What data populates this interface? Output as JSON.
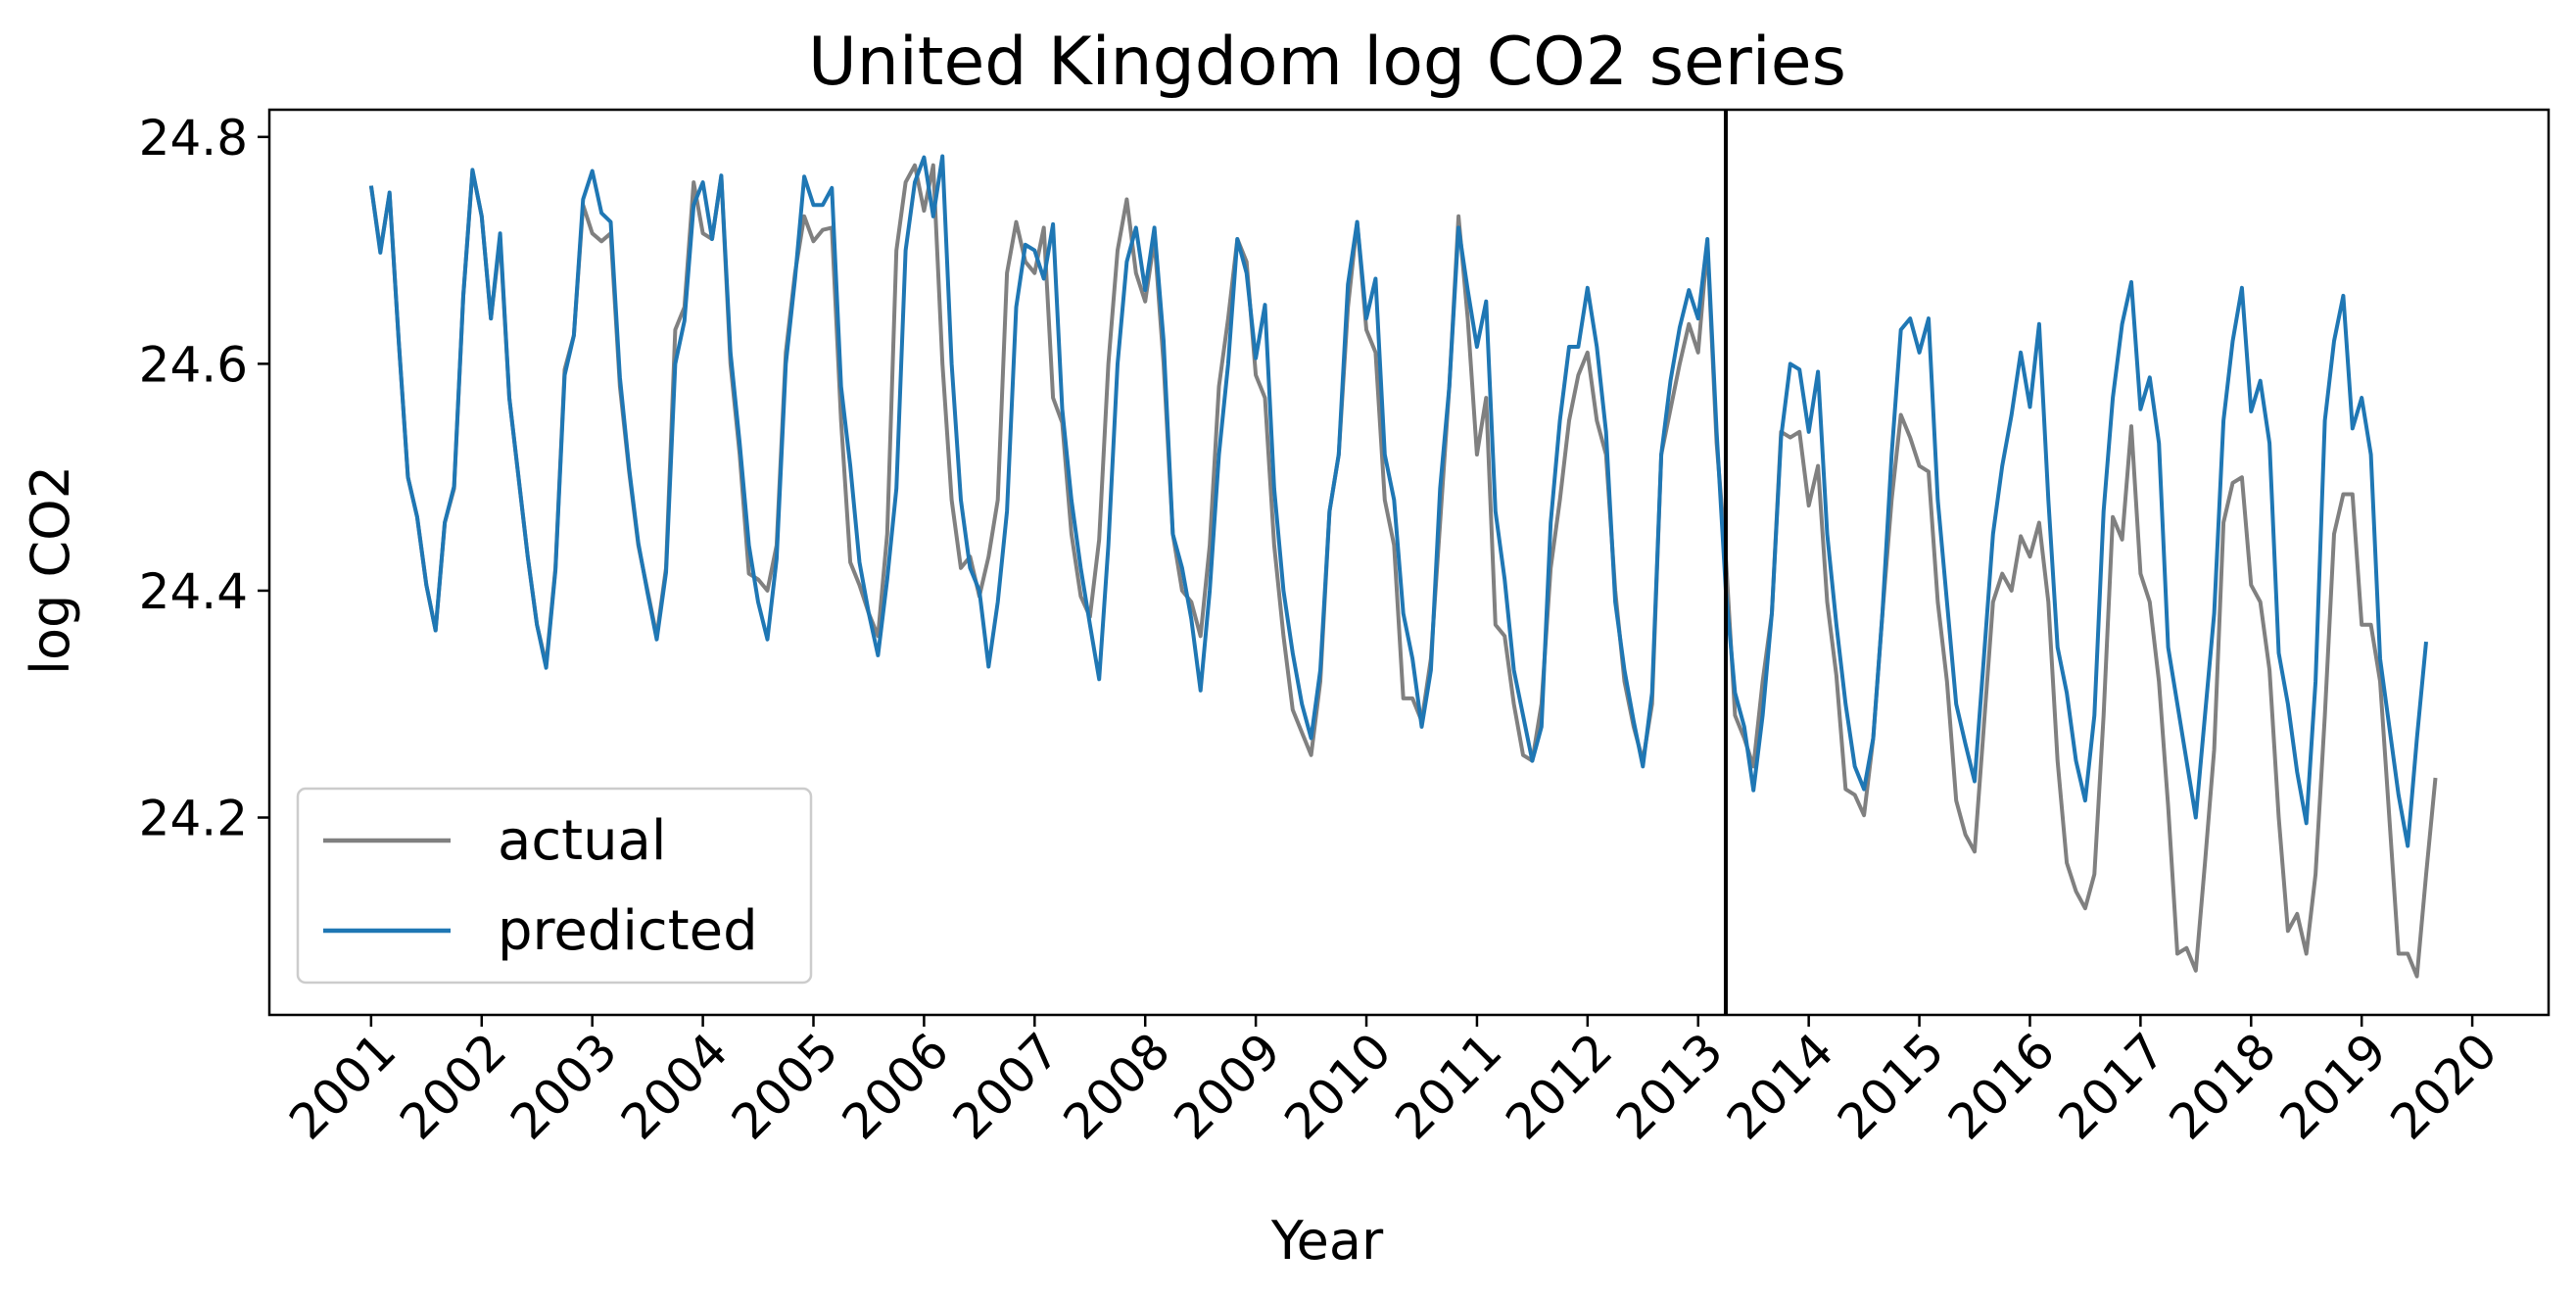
{
  "chart_data": {
    "type": "line",
    "title": "United Kingdom log CO2 series",
    "xlabel": "Year",
    "ylabel": "log CO2",
    "x_ticks": [
      "2001",
      "2002",
      "2003",
      "2004",
      "2005",
      "2006",
      "2007",
      "2008",
      "2009",
      "2010",
      "2011",
      "2012",
      "2013",
      "2014",
      "2015",
      "2016",
      "2017",
      "2018",
      "2019",
      "2020"
    ],
    "y_ticks": [
      "24.2",
      "24.4",
      "24.6",
      "24.8"
    ],
    "xlim": [
      2000.08,
      2020.69
    ],
    "ylim": [
      24.026,
      24.824
    ],
    "grid": false,
    "legend_position": "lower-left",
    "vertical_line_x": 2013.25,
    "x_start": 2001.0,
    "x_step": 0.0833333,
    "series": [
      {
        "name": "actual",
        "color": "#808080",
        "values": [
          24.757,
          24.7,
          24.75,
          24.62,
          24.5,
          24.465,
          24.405,
          24.365,
          24.46,
          24.49,
          24.66,
          24.77,
          24.73,
          24.64,
          24.71,
          24.57,
          24.5,
          24.43,
          24.37,
          24.335,
          24.42,
          24.595,
          24.625,
          24.74,
          24.715,
          24.708,
          24.715,
          24.58,
          24.505,
          24.44,
          24.4,
          24.36,
          24.42,
          24.63,
          24.65,
          24.76,
          24.715,
          24.71,
          24.765,
          24.6,
          24.52,
          24.415,
          24.41,
          24.4,
          24.44,
          24.61,
          24.68,
          24.73,
          24.708,
          24.718,
          24.72,
          24.55,
          24.425,
          24.405,
          24.38,
          24.36,
          24.45,
          24.7,
          24.76,
          24.775,
          24.735,
          24.775,
          24.6,
          24.48,
          24.42,
          24.43,
          24.395,
          24.43,
          24.48,
          24.68,
          24.725,
          24.69,
          24.68,
          24.72,
          24.57,
          24.548,
          24.45,
          24.395,
          24.377,
          24.445,
          24.6,
          24.7,
          24.745,
          24.68,
          24.655,
          24.71,
          24.6,
          24.45,
          24.4,
          24.39,
          24.36,
          24.44,
          24.58,
          24.64,
          24.71,
          24.69,
          24.59,
          24.57,
          24.44,
          24.36,
          24.295,
          24.275,
          24.255,
          24.32,
          24.47,
          24.52,
          24.65,
          24.725,
          24.63,
          24.61,
          24.48,
          24.44,
          24.305,
          24.305,
          24.285,
          24.34,
          24.46,
          24.58,
          24.73,
          24.64,
          24.52,
          24.57,
          24.37,
          24.36,
          24.3,
          24.255,
          24.25,
          24.3,
          24.42,
          24.48,
          24.55,
          24.59,
          24.61,
          24.55,
          24.52,
          24.4,
          24.32,
          24.28,
          24.25,
          24.3,
          24.52,
          24.56,
          24.6,
          24.635,
          24.61,
          24.705,
          24.53,
          24.43,
          24.29,
          24.27,
          24.245,
          24.32,
          24.38,
          24.54,
          24.535,
          24.54,
          24.475,
          24.51,
          24.39,
          24.325,
          24.225,
          24.22,
          24.202,
          24.27,
          24.38,
          24.48,
          24.555,
          24.535,
          24.51,
          24.505,
          24.39,
          24.32,
          24.215,
          24.185,
          24.17,
          24.28,
          24.39,
          24.415,
          24.4,
          24.448,
          24.43,
          24.46,
          24.39,
          24.25,
          24.16,
          24.135,
          24.12,
          24.15,
          24.29,
          24.465,
          24.445,
          24.545,
          24.415,
          24.39,
          24.32,
          24.21,
          24.08,
          24.085,
          24.065,
          24.16,
          24.26,
          24.46,
          24.495,
          24.5,
          24.405,
          24.39,
          24.33,
          24.2,
          24.1,
          24.115,
          24.08,
          24.15,
          24.29,
          24.45,
          24.485,
          24.485,
          24.37,
          24.37,
          24.32,
          24.2,
          24.08,
          24.08,
          24.06,
          24.15,
          24.235
        ]
      },
      {
        "name": "predicted",
        "color": "#1f77b4",
        "values": [
          24.757,
          24.698,
          24.751,
          24.62,
          24.5,
          24.465,
          24.405,
          24.365,
          24.46,
          24.492,
          24.66,
          24.771,
          24.73,
          24.64,
          24.715,
          24.57,
          24.5,
          24.43,
          24.37,
          24.332,
          24.418,
          24.59,
          24.625,
          24.745,
          24.77,
          24.733,
          24.725,
          24.588,
          24.508,
          24.442,
          24.398,
          24.357,
          24.416,
          24.6,
          24.638,
          24.74,
          24.76,
          24.71,
          24.766,
          24.61,
          24.53,
          24.44,
          24.39,
          24.357,
          24.428,
          24.6,
          24.675,
          24.765,
          24.74,
          24.74,
          24.755,
          24.58,
          24.51,
          24.425,
          24.38,
          24.343,
          24.41,
          24.49,
          24.7,
          24.76,
          24.782,
          24.73,
          24.783,
          24.6,
          24.48,
          24.42,
          24.4,
          24.333,
          24.39,
          24.47,
          24.65,
          24.705,
          24.7,
          24.675,
          24.723,
          24.56,
          24.48,
          24.42,
          24.37,
          24.322,
          24.44,
          24.6,
          24.69,
          24.72,
          24.665,
          24.72,
          24.62,
          24.45,
          24.42,
          24.375,
          24.312,
          24.4,
          24.52,
          24.6,
          24.71,
          24.68,
          24.605,
          24.652,
          24.49,
          24.4,
          24.345,
          24.3,
          24.27,
          24.33,
          24.47,
          24.52,
          24.67,
          24.725,
          24.64,
          24.675,
          24.52,
          24.48,
          24.38,
          24.34,
          24.28,
          24.33,
          24.49,
          24.58,
          24.72,
          24.665,
          24.615,
          24.655,
          24.47,
          24.41,
          24.33,
          24.29,
          24.25,
          24.28,
          24.46,
          24.55,
          24.615,
          24.615,
          24.667,
          24.615,
          24.54,
          24.39,
          24.33,
          24.285,
          24.245,
          24.31,
          24.52,
          24.585,
          24.632,
          24.665,
          24.64,
          24.71,
          24.54,
          24.4,
          24.31,
          24.28,
          24.224,
          24.29,
          24.38,
          24.535,
          24.6,
          24.595,
          24.54,
          24.593,
          24.45,
          24.37,
          24.3,
          24.245,
          24.225,
          24.27,
          24.38,
          24.52,
          24.63,
          24.64,
          24.61,
          24.64,
          24.48,
          24.39,
          24.3,
          24.265,
          24.232,
          24.34,
          24.45,
          24.51,
          24.555,
          24.61,
          24.562,
          24.635,
          24.48,
          24.35,
          24.31,
          24.25,
          24.215,
          24.29,
          24.47,
          24.57,
          24.635,
          24.672,
          24.56,
          24.588,
          24.53,
          24.35,
          24.3,
          24.25,
          24.2,
          24.29,
          24.38,
          24.55,
          24.62,
          24.667,
          24.558,
          24.585,
          24.53,
          24.345,
          24.3,
          24.24,
          24.195,
          24.32,
          24.55,
          24.62,
          24.66,
          24.543,
          24.57,
          24.52,
          24.34,
          24.28,
          24.22,
          24.175,
          24.27,
          24.355
        ]
      }
    ]
  }
}
